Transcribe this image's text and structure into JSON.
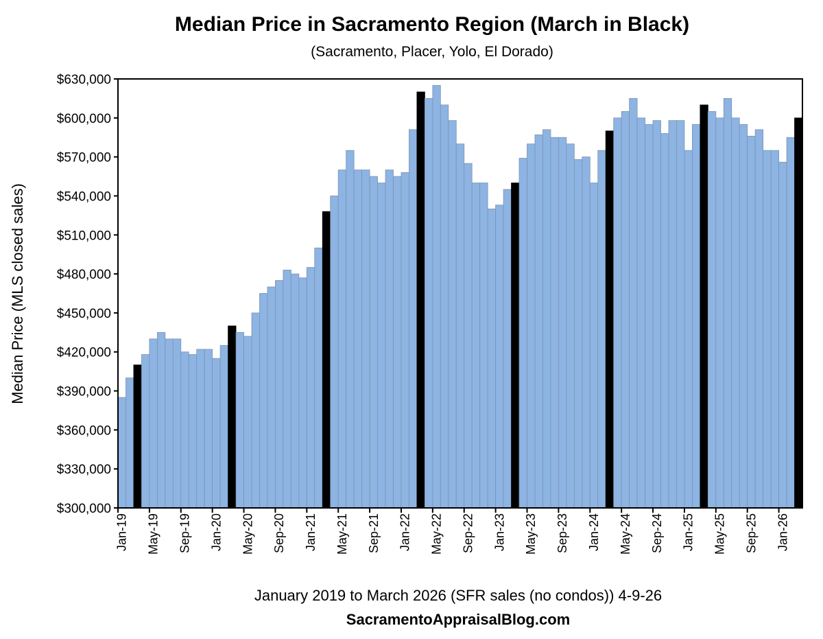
{
  "chart_data": {
    "type": "bar",
    "title": "Median Price in Sacramento Region (March in Black)",
    "subtitle": "(Sacramento, Placer,  Yolo, El Dorado)",
    "ylabel": "Median Price (MLS closed sales)",
    "xlabel": "January 2019 to March 2026 (SFR sales (no condos)) 4-9-26",
    "footer": "SacramentoAppraisalBlog.com",
    "ylim": [
      300000,
      630000
    ],
    "yticks": [
      "$300,000",
      "$330,000",
      "$360,000",
      "$390,000",
      "$420,000",
      "$450,000",
      "$480,000",
      "$510,000",
      "$540,000",
      "$570,000",
      "$600,000",
      "$630,000"
    ],
    "xtick_labels": [
      "Jan-19",
      "May-19",
      "Sep-19",
      "Jan-20",
      "May-20",
      "Sep-20",
      "Jan-21",
      "May-21",
      "Sep-21",
      "Jan-22",
      "May-22",
      "Sep-22",
      "Jan-23",
      "May-23",
      "Sep-23",
      "Jan-24",
      "May-24",
      "Sep-24",
      "Jan-25",
      "May-25",
      "Sep-25",
      "Jan-26"
    ],
    "start_month": "Jan-19",
    "highlight_month": "March",
    "colors": {
      "bar": "#8db4e2",
      "highlight": "#000000",
      "bar_edge": "#7d93b3"
    },
    "grid": false,
    "values": [
      385000,
      400000,
      410000,
      418000,
      430000,
      435000,
      430000,
      430000,
      420000,
      418000,
      422000,
      422000,
      415000,
      425000,
      440000,
      435000,
      432000,
      450000,
      465000,
      470000,
      475000,
      483000,
      480000,
      477000,
      485000,
      500000,
      528000,
      540000,
      560000,
      575000,
      560000,
      560000,
      555000,
      550000,
      560000,
      555000,
      558000,
      591000,
      620000,
      615000,
      625000,
      610000,
      598000,
      580000,
      565000,
      550000,
      550000,
      530000,
      533000,
      545000,
      550000,
      569000,
      580000,
      587000,
      591000,
      585000,
      585000,
      580000,
      568000,
      570000,
      550000,
      575000,
      590000,
      600000,
      605000,
      615000,
      600000,
      595000,
      598000,
      588000,
      598000,
      598000,
      575000,
      595000,
      610000,
      605000,
      600000,
      615000,
      600000,
      595000,
      586000,
      591000,
      575000,
      575000,
      566000,
      585000,
      600000
    ]
  }
}
